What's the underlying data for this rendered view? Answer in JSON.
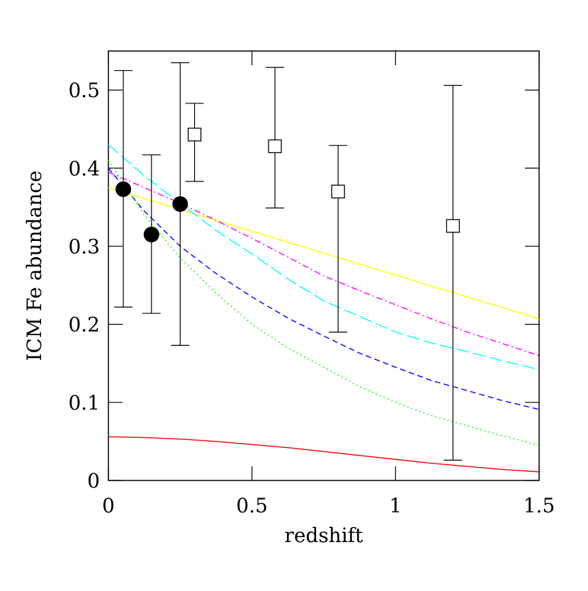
{
  "chart_data": {
    "type": "line",
    "xlabel": "redshift",
    "ylabel": "ICM Fe abundance",
    "xlim": [
      0,
      1.5
    ],
    "ylim": [
      0,
      0.55
    ],
    "xticks": [
      0,
      0.5,
      {
        "value": 1,
        "label": "1"
      },
      1.5
    ],
    "yticks": [
      0,
      0.1,
      0.2,
      0.3,
      0.4,
      0.5
    ],
    "x": [
      0,
      0.125,
      0.25,
      0.375,
      0.5,
      0.625,
      0.75,
      0.875,
      1.0,
      1.125,
      1.25,
      1.375,
      1.5
    ],
    "series": [
      {
        "color": "#ff0000",
        "style": "solid",
        "values": [
          0.056,
          0.055,
          0.053,
          0.05,
          0.046,
          0.042,
          0.037,
          0.032,
          0.027,
          0.022,
          0.018,
          0.014,
          0.011
        ]
      },
      {
        "color": "#ffff00",
        "style": "solid",
        "values": [
          0.375,
          0.361,
          0.347,
          0.333,
          0.319,
          0.305,
          0.291,
          0.277,
          0.263,
          0.249,
          0.235,
          0.221,
          0.207
        ]
      },
      {
        "color": "#ff00ff",
        "style": "dashdot",
        "values": [
          0.395,
          0.375,
          0.355,
          0.333,
          0.31,
          0.286,
          0.262,
          0.243,
          0.225,
          0.207,
          0.19,
          0.175,
          0.16
        ]
      },
      {
        "color": "#00ffff",
        "style": "longdash",
        "values": [
          0.43,
          0.39,
          0.355,
          0.32,
          0.29,
          0.258,
          0.23,
          0.21,
          0.19,
          0.176,
          0.165,
          0.153,
          0.142
        ]
      },
      {
        "color": "#0000ff",
        "style": "dashed",
        "values": [
          0.4,
          0.345,
          0.3,
          0.265,
          0.235,
          0.208,
          0.185,
          0.163,
          0.145,
          0.128,
          0.115,
          0.102,
          0.091
        ]
      },
      {
        "color": "#00ff00",
        "style": "dotted",
        "values": [
          0.41,
          0.34,
          0.285,
          0.24,
          0.2,
          0.17,
          0.145,
          0.12,
          0.1,
          0.083,
          0.07,
          0.057,
          0.045
        ]
      }
    ],
    "points": [
      {
        "marker": "filled-circle",
        "color": "#000000",
        "x": [
          0.052,
          0.15,
          0.25
        ],
        "y": [
          0.373,
          0.315,
          0.354
        ],
        "lower": [
          0.222,
          0.214,
          0.173
        ],
        "upper": [
          0.525,
          0.417,
          0.535
        ]
      },
      {
        "marker": "open-square",
        "color": "#000000",
        "x": [
          0.3,
          0.58,
          0.8,
          1.2
        ],
        "y": [
          0.443,
          0.428,
          0.37,
          0.326
        ],
        "lower": [
          0.383,
          0.349,
          0.19,
          0.026
        ],
        "upper": [
          0.483,
          0.529,
          0.429,
          0.506
        ]
      }
    ]
  }
}
